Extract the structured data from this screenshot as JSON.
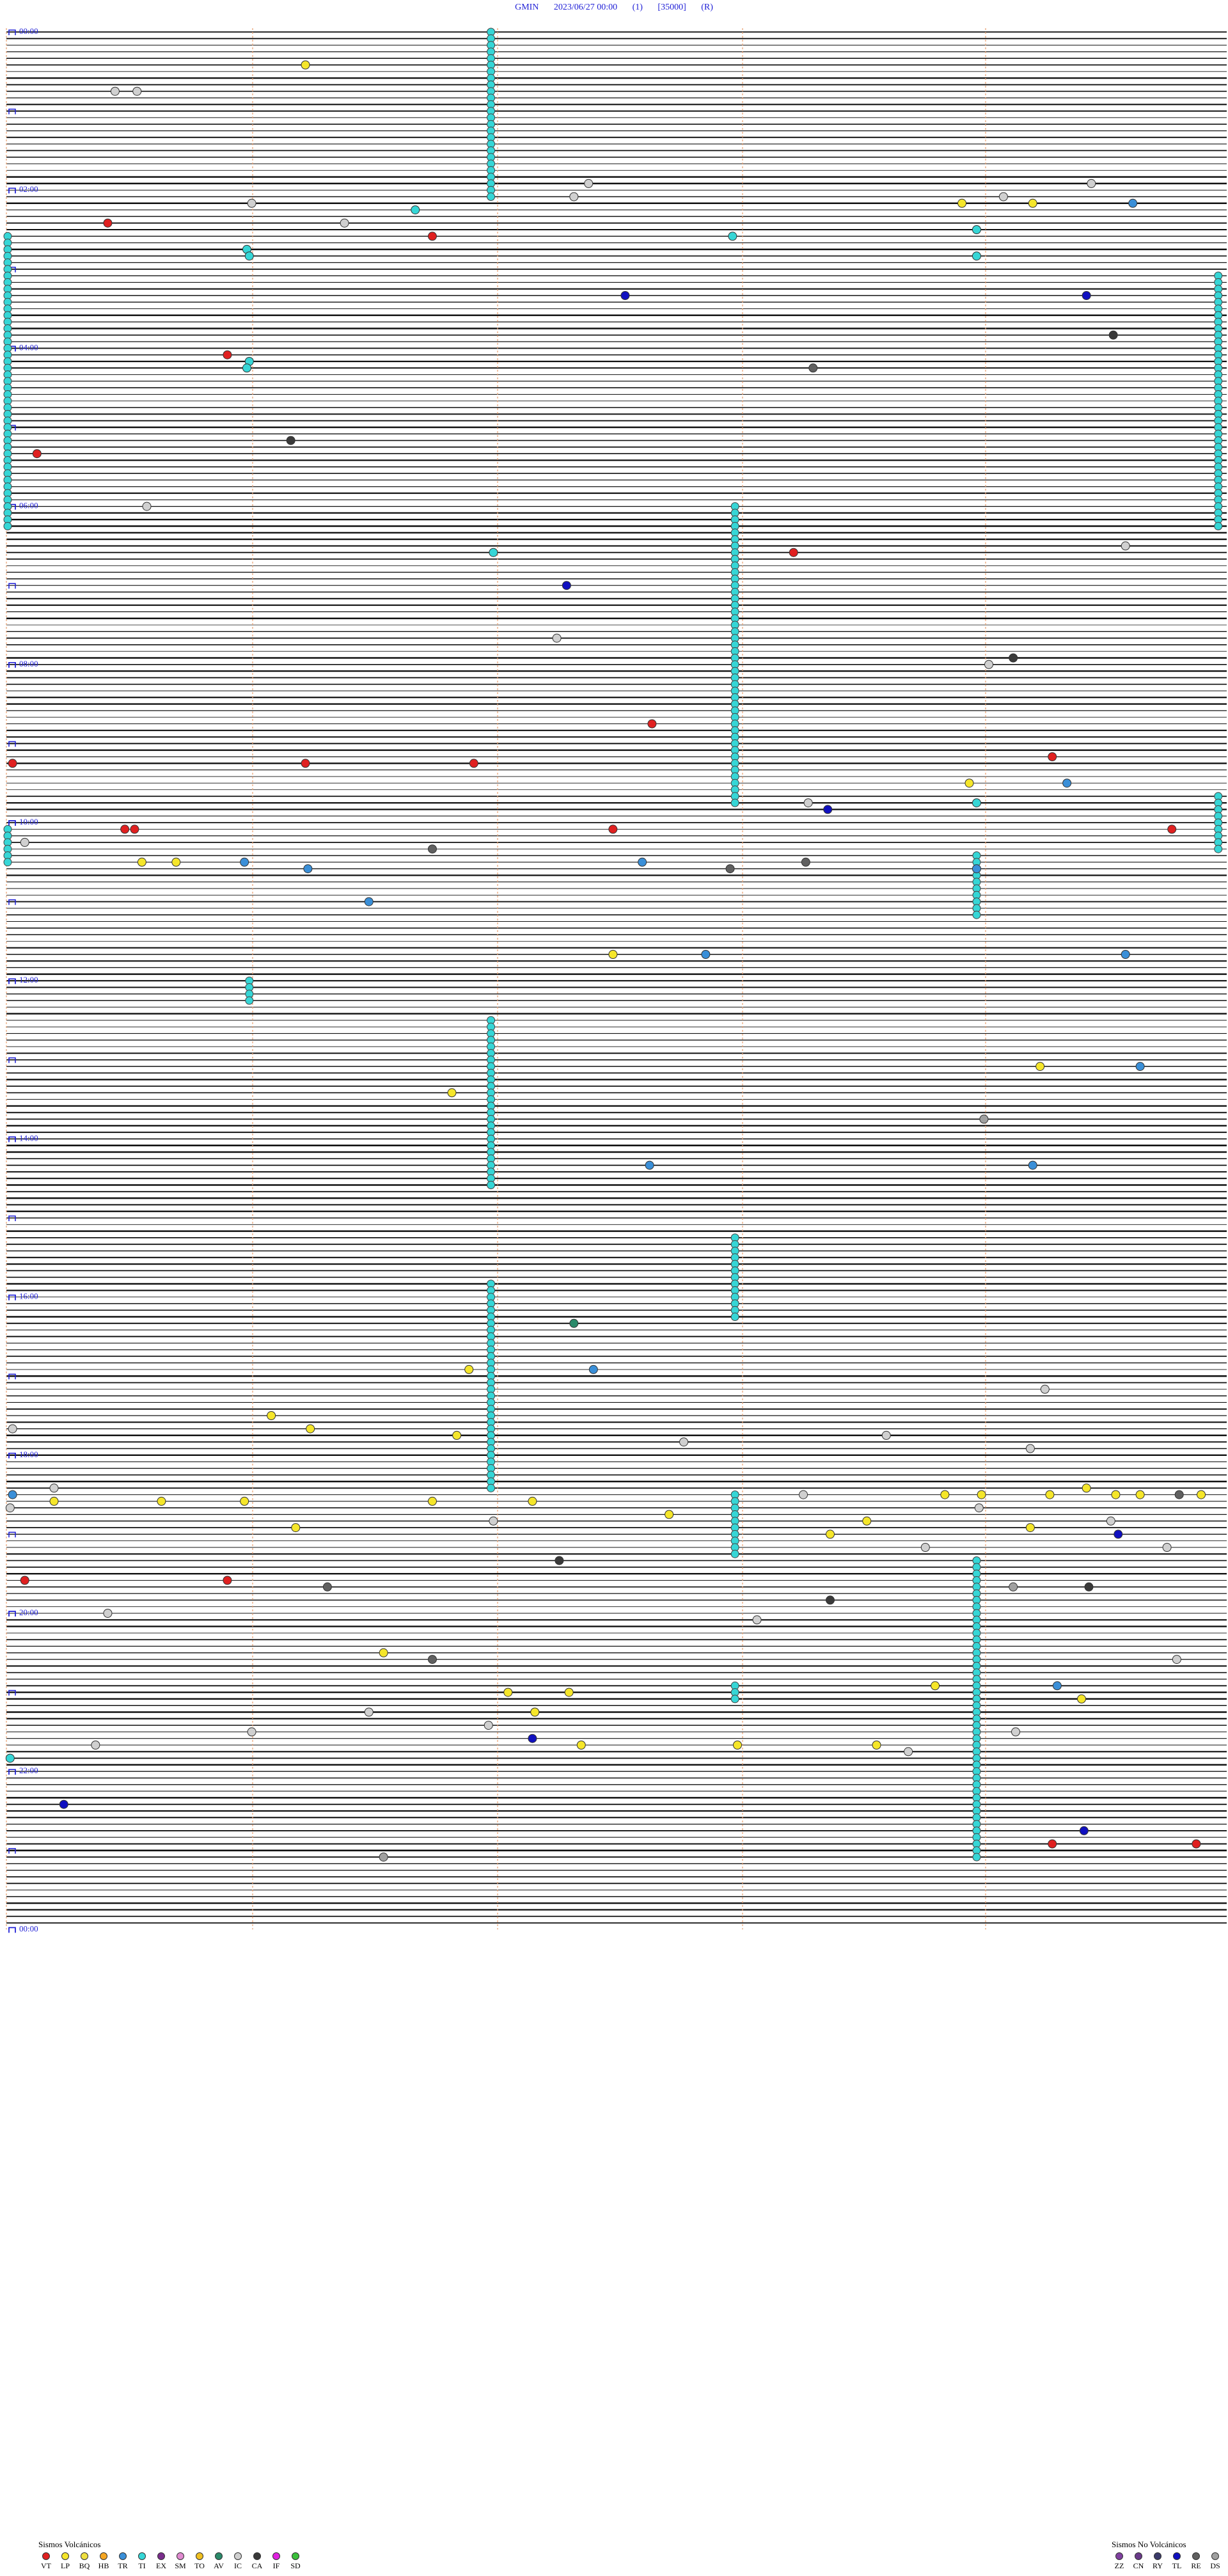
{
  "header": {
    "station": "GMIN",
    "datetime": "2023/06/27 00:00",
    "channel": "(1)",
    "scale": "[35000]",
    "mode": "(R)"
  },
  "chart_data": {
    "type": "scatter",
    "title": "GMIN 2023/06/27 00:00 (1) [35000] (R)",
    "hour_labels": [
      "00:00",
      "02:00",
      "04:00",
      "06:00",
      "08:00",
      "10:00",
      "12:00",
      "14:00",
      "16:00",
      "18:00",
      "20:00",
      "22:00",
      "00:00"
    ],
    "rows_per_hour": 12,
    "total_rows": 288,
    "columns": 5,
    "event_types": {
      "VT": "#e02020",
      "LP": "#f5e62a",
      "BQ": "#f0e040",
      "HB": "#f5a623",
      "TR": "#3a8fd8",
      "TI": "#36d6d6",
      "EX": "#7a2d8c",
      "SM": "#e08ad0",
      "TO": "#f0c020",
      "AV": "#2a8a6a",
      "IC": "#d0d0d0",
      "CA": "#3a3a3a",
      "IF": "#e020e0",
      "SD": "#3ac03a",
      "ZZ": "#8040a0",
      "CN": "#6a3a8a",
      "RY": "#3a3a6a",
      "TL": "#1010c0",
      "RE": "#606060",
      "DS": "#a0a0a0"
    },
    "events": [
      {
        "row": 5,
        "col": 1.22,
        "type": "LP"
      },
      {
        "row": 9,
        "col": 0.44,
        "type": "IC"
      },
      {
        "row": 9,
        "col": 0.53,
        "type": "IC"
      },
      {
        "row": 23,
        "col": 2.38,
        "type": "IC"
      },
      {
        "row": 23,
        "col": 4.44,
        "type": "IC"
      },
      {
        "row": 25,
        "col": 2.32,
        "type": "IC"
      },
      {
        "row": 25,
        "col": 4.08,
        "type": "IC"
      },
      {
        "row": 26,
        "col": 1.0,
        "type": "IC"
      },
      {
        "row": 26,
        "col": 3.91,
        "type": "LP"
      },
      {
        "row": 26,
        "col": 4.2,
        "type": "LP"
      },
      {
        "row": 26,
        "col": 4.61,
        "type": "TR"
      },
      {
        "row": 27,
        "col": 1.67,
        "type": "TI"
      },
      {
        "row": 29,
        "col": 1.38,
        "type": "IC"
      },
      {
        "row": 29,
        "col": 0.41,
        "type": "VT"
      },
      {
        "row": 31,
        "col": 1.74,
        "type": "VT"
      },
      {
        "row": 31,
        "col": 2.97,
        "type": "TI"
      },
      {
        "row": 30,
        "col": 3.97,
        "type": "TI"
      },
      {
        "row": 33,
        "col": 0.98,
        "type": "TI"
      },
      {
        "row": 34,
        "col": 0.99,
        "type": "TI"
      },
      {
        "row": 34,
        "col": 3.97,
        "type": "TI"
      },
      {
        "row": 40,
        "col": 2.53,
        "type": "TL"
      },
      {
        "row": 40,
        "col": 4.42,
        "type": "TL"
      },
      {
        "row": 46,
        "col": 4.53,
        "type": "CA"
      },
      {
        "row": 49,
        "col": 0.9,
        "type": "VT"
      },
      {
        "row": 50,
        "col": 0.99,
        "type": "TI"
      },
      {
        "row": 51,
        "col": 0.98,
        "type": "TI"
      },
      {
        "row": 51,
        "col": 3.3,
        "type": "RE"
      },
      {
        "row": 62,
        "col": 1.16,
        "type": "CA"
      },
      {
        "row": 64,
        "col": 0.12,
        "type": "VT"
      },
      {
        "row": 72,
        "col": 0.57,
        "type": "IC"
      },
      {
        "row": 78,
        "col": 4.58,
        "type": "IC"
      },
      {
        "row": 79,
        "col": 3.22,
        "type": "VT"
      },
      {
        "row": 79,
        "col": 1.99,
        "type": "TI"
      },
      {
        "row": 84,
        "col": 2.29,
        "type": "TL"
      },
      {
        "row": 92,
        "col": 2.25,
        "type": "IC"
      },
      {
        "row": 95,
        "col": 4.12,
        "type": "CA"
      },
      {
        "row": 96,
        "col": 4.02,
        "type": "IC"
      },
      {
        "row": 105,
        "col": 2.64,
        "type": "VT"
      },
      {
        "row": 111,
        "col": 0.02,
        "type": "VT"
      },
      {
        "row": 111,
        "col": 1.22,
        "type": "VT"
      },
      {
        "row": 111,
        "col": 1.91,
        "type": "VT"
      },
      {
        "row": 110,
        "col": 4.28,
        "type": "VT"
      },
      {
        "row": 114,
        "col": 3.94,
        "type": "LP"
      },
      {
        "row": 114,
        "col": 4.34,
        "type": "TR"
      },
      {
        "row": 117,
        "col": 3.28,
        "type": "IC"
      },
      {
        "row": 118,
        "col": 3.36,
        "type": "TL"
      },
      {
        "row": 117,
        "col": 3.97,
        "type": "TI"
      },
      {
        "row": 121,
        "col": 0.48,
        "type": "VT"
      },
      {
        "row": 121,
        "col": 0.52,
        "type": "VT"
      },
      {
        "row": 121,
        "col": 2.48,
        "type": "VT"
      },
      {
        "row": 121,
        "col": 4.77,
        "type": "VT"
      },
      {
        "row": 123,
        "col": 0.07,
        "type": "IC"
      },
      {
        "row": 124,
        "col": 1.74,
        "type": "RE"
      },
      {
        "row": 126,
        "col": 0.55,
        "type": "LP"
      },
      {
        "row": 126,
        "col": 0.69,
        "type": "LP"
      },
      {
        "row": 126,
        "col": 0.97,
        "type": "TR"
      },
      {
        "row": 127,
        "col": 1.23,
        "type": "TR"
      },
      {
        "row": 126,
        "col": 2.6,
        "type": "TR"
      },
      {
        "row": 127,
        "col": 2.96,
        "type": "RE"
      },
      {
        "row": 126,
        "col": 3.27,
        "type": "RE"
      },
      {
        "row": 127,
        "col": 3.97,
        "type": "TR"
      },
      {
        "row": 132,
        "col": 1.48,
        "type": "TR"
      },
      {
        "row": 140,
        "col": 2.48,
        "type": "LP"
      },
      {
        "row": 140,
        "col": 2.86,
        "type": "TR"
      },
      {
        "row": 140,
        "col": 4.58,
        "type": "TR"
      },
      {
        "row": 157,
        "col": 4.23,
        "type": "LP"
      },
      {
        "row": 157,
        "col": 4.64,
        "type": "TR"
      },
      {
        "row": 161,
        "col": 1.82,
        "type": "LP"
      },
      {
        "row": 165,
        "col": 4.0,
        "type": "DS"
      },
      {
        "row": 172,
        "col": 2.63,
        "type": "TR"
      },
      {
        "row": 172,
        "col": 4.2,
        "type": "TR"
      },
      {
        "row": 196,
        "col": 2.32,
        "type": "AV"
      },
      {
        "row": 203,
        "col": 1.89,
        "type": "LP"
      },
      {
        "row": 203,
        "col": 2.4,
        "type": "TR"
      },
      {
        "row": 206,
        "col": 4.25,
        "type": "IC"
      },
      {
        "row": 210,
        "col": 1.08,
        "type": "LP"
      },
      {
        "row": 212,
        "col": 1.24,
        "type": "LP"
      },
      {
        "row": 212,
        "col": 0.02,
        "type": "IC"
      },
      {
        "row": 213,
        "col": 1.84,
        "type": "LP"
      },
      {
        "row": 214,
        "col": 2.77,
        "type": "IC"
      },
      {
        "row": 213,
        "col": 3.6,
        "type": "IC"
      },
      {
        "row": 215,
        "col": 4.19,
        "type": "IC"
      },
      {
        "row": 221,
        "col": 0.19,
        "type": "IC"
      },
      {
        "row": 222,
        "col": 0.02,
        "type": "TR"
      },
      {
        "row": 222,
        "col": 3.26,
        "type": "IC"
      },
      {
        "row": 222,
        "col": 4.8,
        "type": "RE"
      },
      {
        "row": 222,
        "col": 3.84,
        "type": "LP"
      },
      {
        "row": 222,
        "col": 3.99,
        "type": "LP"
      },
      {
        "row": 222,
        "col": 4.27,
        "type": "LP"
      },
      {
        "row": 221,
        "col": 4.42,
        "type": "LP"
      },
      {
        "row": 222,
        "col": 4.54,
        "type": "LP"
      },
      {
        "row": 222,
        "col": 4.64,
        "type": "LP"
      },
      {
        "row": 222,
        "col": 4.89,
        "type": "LP"
      },
      {
        "row": 223,
        "col": 0.19,
        "type": "LP"
      },
      {
        "row": 223,
        "col": 0.63,
        "type": "LP"
      },
      {
        "row": 223,
        "col": 0.97,
        "type": "LP"
      },
      {
        "row": 223,
        "col": 1.74,
        "type": "LP"
      },
      {
        "row": 223,
        "col": 2.15,
        "type": "LP"
      },
      {
        "row": 224,
        "col": 0.01,
        "type": "IC"
      },
      {
        "row": 224,
        "col": 3.98,
        "type": "IC"
      },
      {
        "row": 225,
        "col": 2.71,
        "type": "LP"
      },
      {
        "row": 226,
        "col": 1.99,
        "type": "IC"
      },
      {
        "row": 226,
        "col": 3.52,
        "type": "LP"
      },
      {
        "row": 226,
        "col": 4.52,
        "type": "IC"
      },
      {
        "row": 227,
        "col": 1.18,
        "type": "LP"
      },
      {
        "row": 227,
        "col": 4.19,
        "type": "LP"
      },
      {
        "row": 228,
        "col": 3.37,
        "type": "LP"
      },
      {
        "row": 228,
        "col": 4.55,
        "type": "TL"
      },
      {
        "row": 230,
        "col": 3.76,
        "type": "IC"
      },
      {
        "row": 230,
        "col": 4.75,
        "type": "IC"
      },
      {
        "row": 232,
        "col": 2.26,
        "type": "CA"
      },
      {
        "row": 235,
        "col": 0.07,
        "type": "VT"
      },
      {
        "row": 235,
        "col": 0.9,
        "type": "VT"
      },
      {
        "row": 236,
        "col": 1.31,
        "type": "RE"
      },
      {
        "row": 236,
        "col": 4.12,
        "type": "DS"
      },
      {
        "row": 236,
        "col": 4.43,
        "type": "CA"
      },
      {
        "row": 238,
        "col": 3.37,
        "type": "CA"
      },
      {
        "row": 240,
        "col": 0.41,
        "type": "IC"
      },
      {
        "row": 241,
        "col": 3.07,
        "type": "IC"
      },
      {
        "row": 246,
        "col": 1.54,
        "type": "LP"
      },
      {
        "row": 247,
        "col": 1.74,
        "type": "RE"
      },
      {
        "row": 247,
        "col": 4.79,
        "type": "IC"
      },
      {
        "row": 252,
        "col": 2.05,
        "type": "LP"
      },
      {
        "row": 252,
        "col": 2.3,
        "type": "LP"
      },
      {
        "row": 251,
        "col": 3.8,
        "type": "LP"
      },
      {
        "row": 251,
        "col": 4.3,
        "type": "TR"
      },
      {
        "row": 253,
        "col": 4.4,
        "type": "LP"
      },
      {
        "row": 255,
        "col": 1.48,
        "type": "IC"
      },
      {
        "row": 255,
        "col": 2.16,
        "type": "LP"
      },
      {
        "row": 257,
        "col": 1.97,
        "type": "IC"
      },
      {
        "row": 258,
        "col": 1.0,
        "type": "IC"
      },
      {
        "row": 258,
        "col": 4.13,
        "type": "IC"
      },
      {
        "row": 259,
        "col": 2.15,
        "type": "TL"
      },
      {
        "row": 260,
        "col": 0.36,
        "type": "IC"
      },
      {
        "row": 260,
        "col": 2.35,
        "type": "LP"
      },
      {
        "row": 260,
        "col": 2.99,
        "type": "LP"
      },
      {
        "row": 260,
        "col": 3.56,
        "type": "LP"
      },
      {
        "row": 261,
        "col": 3.69,
        "type": "IC"
      },
      {
        "row": 262,
        "col": 0.01,
        "type": "TI"
      },
      {
        "row": 269,
        "col": 0.23,
        "type": "TL"
      },
      {
        "row": 273,
        "col": 4.41,
        "type": "TL"
      },
      {
        "row": 275,
        "col": 4.28,
        "type": "VT"
      },
      {
        "row": 275,
        "col": 4.87,
        "type": "VT"
      },
      {
        "row": 277,
        "col": 1.54,
        "type": "DS"
      }
    ],
    "ti_columns": [
      {
        "col": 1.98,
        "rows": [
          0,
          25
        ]
      },
      {
        "col": 1.98,
        "rows": [
          150,
          175
        ]
      },
      {
        "col": 1.98,
        "rows": [
          190,
          221
        ]
      },
      {
        "col": 2.98,
        "rows": [
          72,
          117
        ]
      },
      {
        "col": 2.98,
        "rows": [
          183,
          195
        ]
      },
      {
        "col": 2.98,
        "rows": [
          222,
          231
        ]
      },
      {
        "col": 2.98,
        "rows": [
          251,
          253
        ]
      },
      {
        "col": 3.97,
        "rows": [
          125,
          134
        ]
      },
      {
        "col": 3.97,
        "rows": [
          232,
          277
        ]
      },
      {
        "col": 0.99,
        "rows": [
          144,
          147
        ]
      },
      {
        "col": 4.96,
        "rows": [
          37,
          75
        ]
      },
      {
        "col": 4.96,
        "rows": [
          116,
          124
        ]
      },
      {
        "col": 0.0,
        "rows": [
          31,
          75
        ]
      },
      {
        "col": 0.0,
        "rows": [
          121,
          126
        ]
      }
    ]
  },
  "legend": {
    "volcanic_title": "Sismos Volcánicos",
    "volcanic": [
      "VT",
      "LP",
      "BQ",
      "HB",
      "TR",
      "TI",
      "EX",
      "SM",
      "TO",
      "AV",
      "IC",
      "CA",
      "IF",
      "SD"
    ],
    "non_volcanic_title": "Sismos No Volcánicos",
    "non_volcanic": [
      "ZZ",
      "CN",
      "RY",
      "TL",
      "RE",
      "DS"
    ]
  }
}
